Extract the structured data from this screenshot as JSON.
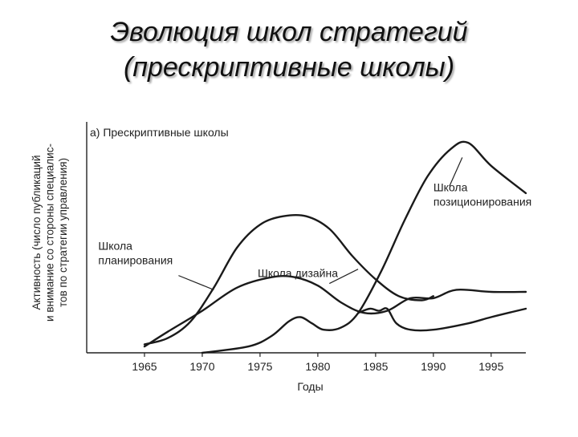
{
  "slide": {
    "title_line1": "Эволюция школ стратегий",
    "title_line2": "(прескриптивные школы)"
  },
  "chart_data": {
    "type": "line",
    "title": "а) Прескриптивные школы",
    "xlabel": "Годы",
    "ylabel_lines": [
      "Активность (число публикаций",
      "и внимание со стороны специалис-",
      "тов по стратегии управления)"
    ],
    "xlim": [
      1960,
      1998
    ],
    "ylim": [
      0,
      100
    ],
    "ticks": [
      1965,
      1970,
      1975,
      1980,
      1985,
      1990,
      1995
    ],
    "grid": false,
    "series": [
      {
        "name": "Школа дизайна",
        "x": [
          1965,
          1967,
          1970,
          1973,
          1976,
          1978,
          1980,
          1982,
          1984,
          1986,
          1988,
          1990,
          1992,
          1995,
          1998
        ],
        "y": [
          3,
          10,
          20,
          31,
          36,
          36,
          32,
          24,
          19,
          20,
          26,
          26,
          30,
          29,
          29
        ]
      },
      {
        "name": "Школа планирования",
        "x": [
          1965,
          1967,
          1969,
          1971,
          1973,
          1975,
          1977,
          1979,
          1981,
          1983,
          1985,
          1987,
          1989,
          1990
        ],
        "y": [
          4,
          7,
          15,
          31,
          50,
          61,
          65,
          65,
          59,
          46,
          35,
          27,
          25,
          27
        ]
      },
      {
        "name": "Школа позиционирования",
        "x": [
          1970,
          1974,
          1976,
          1977.5,
          1978.5,
          1979.5,
          1980.5,
          1982,
          1983.5,
          1985.5,
          1987.5,
          1989.5,
          1991.5,
          1993,
          1995,
          1998
        ],
        "y": [
          0,
          3,
          8,
          15,
          17,
          14,
          11,
          12,
          19,
          39,
          63,
          84,
          97,
          100,
          89,
          76
        ]
      },
      {
        "name": "",
        "x": [
          1983.5,
          1984.5,
          1985.3,
          1986,
          1986.8,
          1988,
          1990,
          1993,
          1995,
          1998
        ],
        "y": [
          19,
          21,
          20,
          21,
          14,
          11,
          11,
          14,
          17,
          21
        ]
      }
    ],
    "annotations": [
      {
        "text_lines": [
          "Школа",
          "позиционирования"
        ],
        "x": 1990,
        "y": 77,
        "arrow_to": [
          1992.5,
          93
        ]
      },
      {
        "text_lines": [
          "Школа",
          "планирования"
        ],
        "x": 1961,
        "y": 49,
        "arrow_to": [
          1971,
          30
        ]
      },
      {
        "text_lines": [
          "Школа дизайна"
        ],
        "x": 1974.8,
        "y": 36,
        "arrow_to": [
          1981,
          33
        ]
      }
    ]
  }
}
